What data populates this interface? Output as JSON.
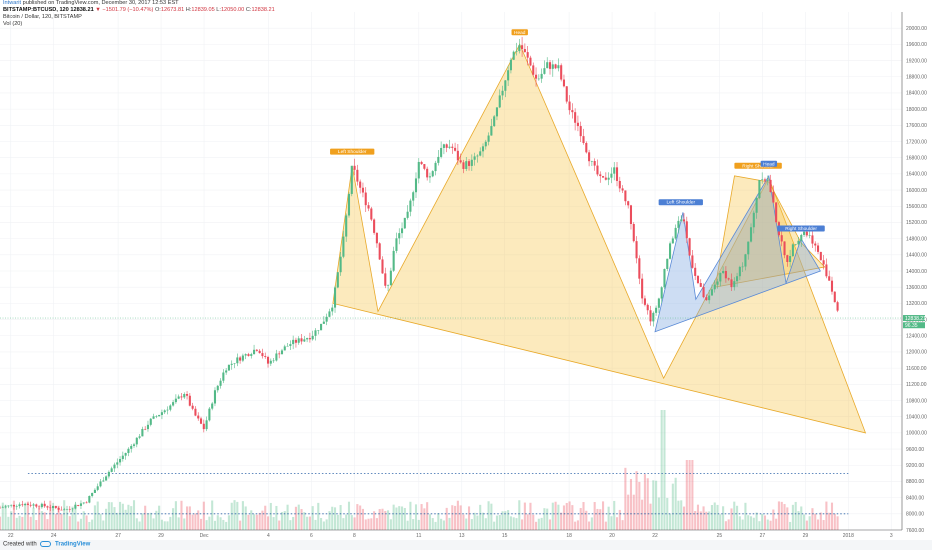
{
  "header": {
    "author": "Intwarit",
    "published_text": "published on TradingView.com, December 30, 2017 12:53 EST",
    "symbol": "BITSTAMP:BTCUSD, 120",
    "last_price": "12838.21",
    "change": "−1501.79 (−10.47%)",
    "ohlc": [
      {
        "k": "O:",
        "v": "12673.81"
      },
      {
        "k": "H:",
        "v": "12839.05"
      },
      {
        "k": "L:",
        "v": "12050.00"
      },
      {
        "k": "C:",
        "v": "12838.21"
      }
    ],
    "title": "Bitcoin / Dollar, 120, BITSTAMP",
    "volume_label": "Vol (20)"
  },
  "footer": {
    "created_with": "Created with",
    "brand": "TradingView"
  },
  "colors": {
    "up": "#53b987",
    "down": "#eb4d5c",
    "orange": "#f5c342",
    "blue": "#7ba5e0",
    "dotted": "#2e64a8"
  },
  "chart_data": {
    "type": "candlestick",
    "ylim": [
      7600,
      20400
    ],
    "y_ticks": [
      7600,
      8000,
      8400,
      8800,
      9200,
      9600,
      10000,
      10400,
      10800,
      11200,
      11600,
      12000,
      12400,
      12800,
      13200,
      13600,
      14000,
      14400,
      14800,
      15200,
      15600,
      16000,
      16400,
      16800,
      17200,
      17600,
      18000,
      18400,
      18800,
      19200,
      19600,
      20000
    ],
    "x_ticks": [
      {
        "label": "22",
        "t": 0.5
      },
      {
        "label": "24",
        "t": 2.5
      },
      {
        "label": "27",
        "t": 5.5
      },
      {
        "label": "29",
        "t": 7.5
      },
      {
        "label": "Dec",
        "t": 9.5
      },
      {
        "label": "4",
        "t": 12.5
      },
      {
        "label": "6",
        "t": 14.5
      },
      {
        "label": "8",
        "t": 16.5
      },
      {
        "label": "11",
        "t": 19.5
      },
      {
        "label": "13",
        "t": 21.5
      },
      {
        "label": "15",
        "t": 23.5
      },
      {
        "label": "18",
        "t": 26.5
      },
      {
        "label": "20",
        "t": 28.5
      },
      {
        "label": "22",
        "t": 30.5
      },
      {
        "label": "25",
        "t": 33.5
      },
      {
        "label": "27",
        "t": 35.5
      },
      {
        "label": "29",
        "t": 37.5
      },
      {
        "label": "2018",
        "t": 39.5
      },
      {
        "label": "3",
        "t": 41.5
      }
    ],
    "path_points": [
      [
        0,
        8150
      ],
      [
        1,
        8250
      ],
      [
        2,
        8200
      ],
      [
        3,
        8100
      ],
      [
        4,
        8300
      ],
      [
        5,
        9000
      ],
      [
        6,
        9600
      ],
      [
        7,
        10300
      ],
      [
        8,
        10700
      ],
      [
        8.6,
        11000
      ],
      [
        9,
        10500
      ],
      [
        9.5,
        10100
      ],
      [
        10,
        11000
      ],
      [
        10.5,
        11600
      ],
      [
        11,
        11800
      ],
      [
        12,
        12100
      ],
      [
        12.5,
        11700
      ],
      [
        13,
        12000
      ],
      [
        13.5,
        12200
      ],
      [
        14,
        12300
      ],
      [
        14.5,
        12400
      ],
      [
        15,
        12700
      ],
      [
        15.5,
        13200
      ],
      [
        16,
        14800
      ],
      [
        16.4,
        16600
      ],
      [
        16.8,
        16000
      ],
      [
        17.2,
        15500
      ],
      [
        17.6,
        14600
      ],
      [
        18,
        13400
      ],
      [
        18.4,
        14700
      ],
      [
        19,
        15400
      ],
      [
        19.5,
        16700
      ],
      [
        20,
        16300
      ],
      [
        20.5,
        17000
      ],
      [
        21,
        17100
      ],
      [
        21.5,
        16600
      ],
      [
        22,
        16700
      ],
      [
        22.5,
        17000
      ],
      [
        23,
        17700
      ],
      [
        23.4,
        18500
      ],
      [
        23.8,
        19300
      ],
      [
        24.2,
        19600
      ],
      [
        24.6,
        19200
      ],
      [
        25,
        18700
      ],
      [
        25.5,
        19100
      ],
      [
        26,
        19000
      ],
      [
        26.5,
        18000
      ],
      [
        27,
        17500
      ],
      [
        27.5,
        16700
      ],
      [
        28,
        16200
      ],
      [
        28.6,
        16500
      ],
      [
        29,
        15900
      ],
      [
        29.3,
        15500
      ],
      [
        29.6,
        14500
      ],
      [
        29.9,
        13400
      ],
      [
        30.3,
        12800
      ],
      [
        30.6,
        13100
      ],
      [
        31,
        14200
      ],
      [
        31.4,
        15000
      ],
      [
        31.8,
        15400
      ],
      [
        32.1,
        14400
      ],
      [
        32.5,
        13700
      ],
      [
        32.9,
        13200
      ],
      [
        33.3,
        13700
      ],
      [
        33.7,
        14000
      ],
      [
        34.1,
        13600
      ],
      [
        34.6,
        14200
      ],
      [
        35,
        15100
      ],
      [
        35.4,
        16400
      ],
      [
        35.8,
        16200
      ],
      [
        36.2,
        15100
      ],
      [
        36.6,
        14200
      ],
      [
        37,
        14700
      ],
      [
        37.4,
        15000
      ],
      [
        37.8,
        14800
      ],
      [
        38.2,
        14300
      ],
      [
        38.6,
        13800
      ],
      [
        38.9,
        13200
      ],
      [
        39.1,
        12838
      ]
    ],
    "volume_line_y": 9000,
    "volume_dotted_y": 8000,
    "patterns": [
      {
        "name": "large-orange-inverse-hs",
        "color": "orange",
        "polygon": [
          [
            15.5,
            13200
          ],
          [
            16.4,
            16600
          ],
          [
            17.6,
            13000
          ],
          [
            24.2,
            19600
          ],
          [
            30.9,
            11350
          ],
          [
            35.8,
            16300
          ],
          [
            40.3,
            10000
          ]
        ]
      },
      {
        "name": "small-orange-hs",
        "color": "orange",
        "polygon": [
          [
            33.3,
            13600
          ],
          [
            34.2,
            16350
          ],
          [
            35.8,
            16200
          ],
          [
            37.3,
            14700
          ],
          [
            38.4,
            14100
          ]
        ]
      },
      {
        "name": "blue-hs",
        "color": "blue",
        "polygon": [
          [
            30.5,
            12500
          ],
          [
            31.8,
            15450
          ],
          [
            32.4,
            13300
          ],
          [
            35.8,
            16350
          ],
          [
            36.6,
            13700
          ],
          [
            37.3,
            14800
          ],
          [
            38.2,
            14000
          ]
        ]
      }
    ],
    "annotations": [
      {
        "text": "Left Shoulder",
        "t": 16.4,
        "y": 16900,
        "color": "orange"
      },
      {
        "text": "Head",
        "t": 24.2,
        "y": 19850,
        "color": "orange"
      },
      {
        "text": "Right Shoulder",
        "t": 35.3,
        "y": 16550,
        "color": "orange"
      },
      {
        "text": "Head",
        "t": 35.8,
        "y": 16600,
        "color": "blue"
      },
      {
        "text": "Left Shoulder",
        "t": 31.7,
        "y": 15650,
        "color": "blue"
      },
      {
        "text": "Right Shoulder",
        "t": 37.3,
        "y": 15000,
        "color": "blue"
      }
    ],
    "price_labels": [
      {
        "text": "12838.21",
        "y": 12838,
        "color": "#53b987"
      },
      {
        "text": "96.35",
        "y": 12660,
        "color": "#53b987"
      }
    ],
    "last_price_line": 12838
  }
}
